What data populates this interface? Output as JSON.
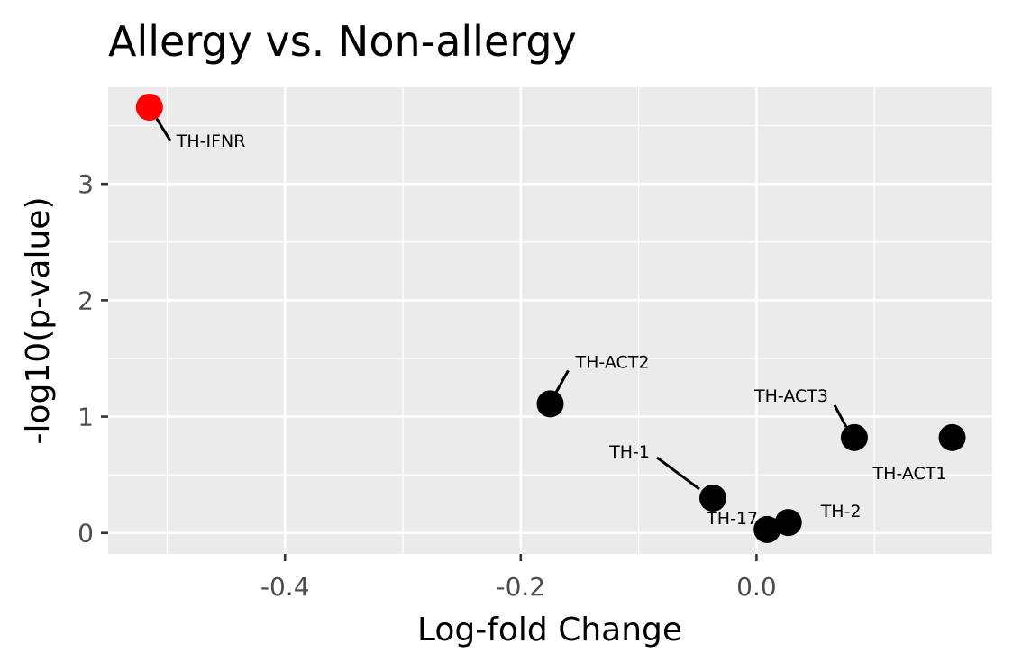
{
  "chart_data": {
    "type": "scatter",
    "title": "Allergy vs. Non-allergy",
    "xlabel": "Log-fold Change",
    "ylabel": "-log10(p-value)",
    "xlim": [
      -0.55,
      0.2
    ],
    "ylim": [
      -0.18,
      3.83
    ],
    "x_ticks": [
      -0.4,
      -0.2,
      0.0
    ],
    "x_tick_labels": [
      "-0.4",
      "-0.2",
      "0.0"
    ],
    "y_ticks": [
      0,
      1,
      2,
      3
    ],
    "y_tick_labels": [
      "0",
      "1",
      "2",
      "3"
    ],
    "grid": true,
    "panel_background": "#ebebeb",
    "points": [
      {
        "label": "TH-IFNR",
        "x": -0.515,
        "y": 3.66,
        "color": "#ff0000"
      },
      {
        "label": "TH-ACT2",
        "x": -0.175,
        "y": 1.11,
        "color": "#000000"
      },
      {
        "label": "TH-ACT3",
        "x": 0.083,
        "y": 0.82,
        "color": "#000000"
      },
      {
        "label": "TH-ACT1",
        "x": 0.166,
        "y": 0.82,
        "color": "#000000"
      },
      {
        "label": "TH-1",
        "x": -0.037,
        "y": 0.3,
        "color": "#000000"
      },
      {
        "label": "TH-17",
        "x": 0.009,
        "y": 0.03,
        "color": "#000000"
      },
      {
        "label": "TH-2",
        "x": 0.027,
        "y": 0.09,
        "color": "#000000"
      }
    ]
  }
}
